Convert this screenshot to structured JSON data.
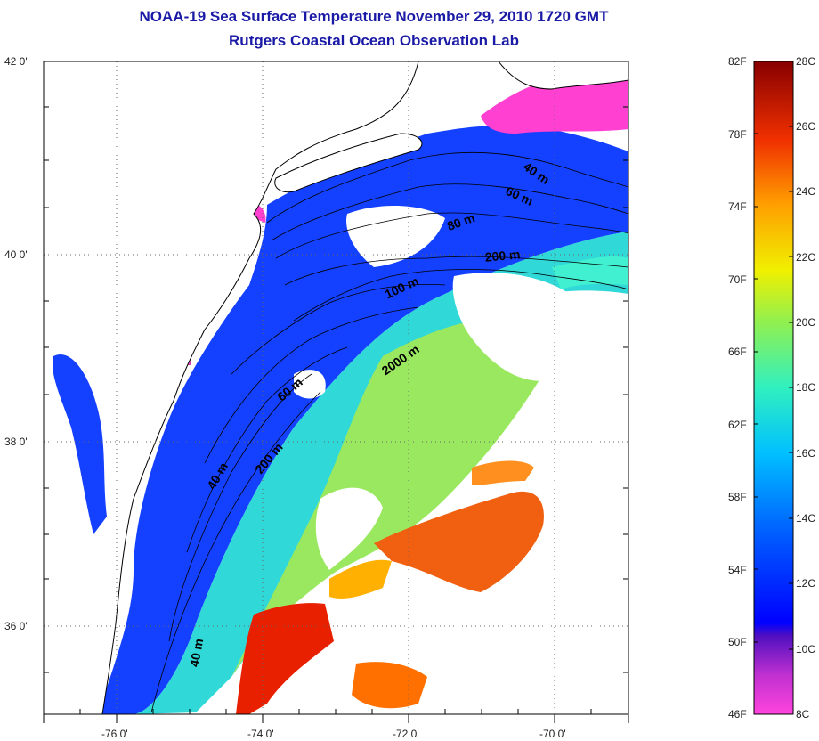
{
  "title": {
    "line1": "NOAA-19 Sea Surface Temperature November 29, 2010 1720 GMT",
    "line2": "Rutgers Coastal Ocean Observation Lab"
  },
  "lat_labels": [
    "42 0'",
    "40 0'",
    "38 0'",
    "36 0'"
  ],
  "lon_labels": [
    "-76 0'",
    "-74 0'",
    "-72 0'",
    "-70 0'"
  ],
  "contour_labels": [
    "40 m",
    "60 m",
    "80 m",
    "200 m",
    "100 m",
    "2000 m",
    "60 m",
    "200 m",
    "40 m",
    "40 m"
  ],
  "colorbar": {
    "fahrenheit": [
      "82F",
      "78F",
      "74F",
      "70F",
      "66F",
      "62F",
      "58F",
      "54F",
      "50F",
      "46F"
    ],
    "celsius": [
      "28C",
      "26C",
      "24C",
      "22C",
      "20C",
      "18C",
      "16C",
      "14C",
      "12C",
      "10C",
      "8C"
    ]
  },
  "colors": {
    "title": "#1a1aa6",
    "land": "#ffffff",
    "cold": "#ff33cc",
    "shelf": "#1030ff",
    "warm": "#e02010"
  }
}
